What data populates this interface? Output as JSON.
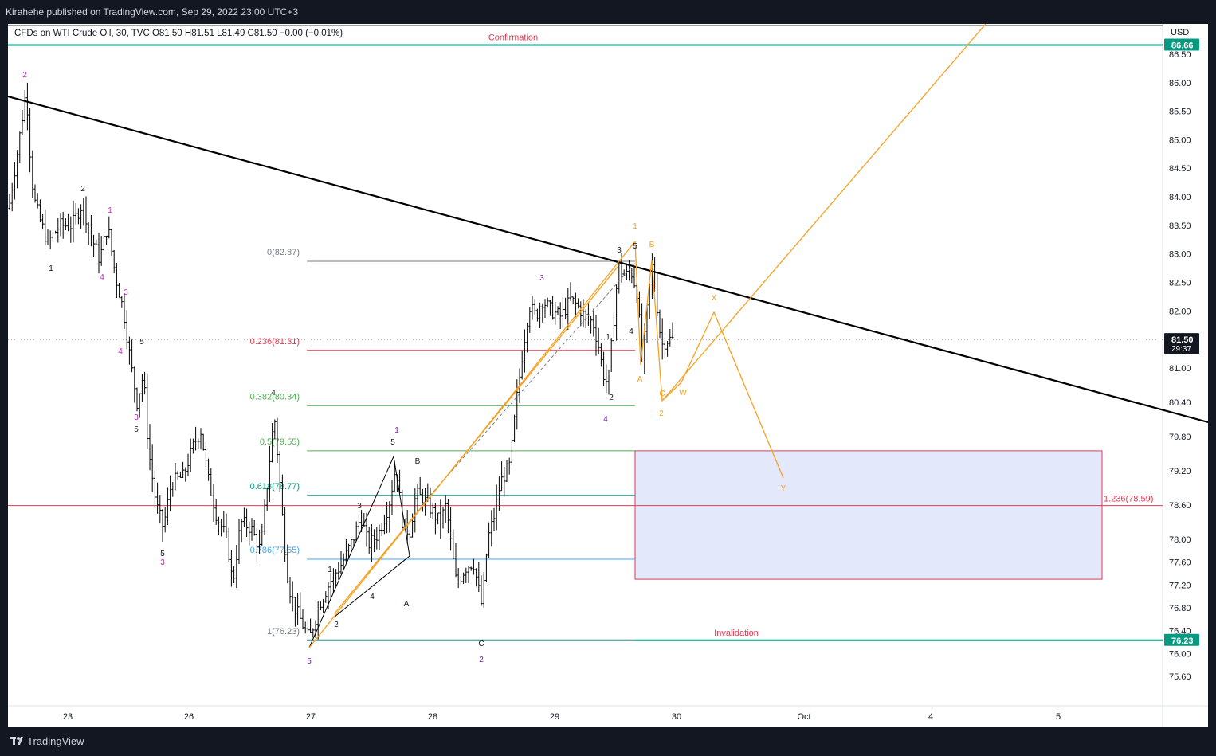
{
  "publisher_line": "Kirahehe published on TradingView.com, Sep 29, 2022 23:00 UTC+3",
  "brand": "TradingView",
  "symbol_line": {
    "symbol": "CFDs on WTI Crude Oil, 30, TVC",
    "open": "O81.50",
    "high": "H81.51",
    "low": "L81.49",
    "close": "C81.50",
    "change": "−0.00 (−0.01%)"
  },
  "currency": "USD",
  "colors": {
    "background": "#131722",
    "chart": "#ffffff",
    "candles": "#000000",
    "teal": "#089981",
    "orange": "#f7a01f",
    "magenta": "#cc22cc",
    "purple": "#7b1fa2",
    "red": "#e53950",
    "zone_fill": "#e4e8fb"
  },
  "chart_data": {
    "type": "candlestick",
    "title": "",
    "xlabel": "",
    "ylabel": "",
    "price_scale": "right",
    "ylim": [
      75.2,
      87.2
    ],
    "x_tick_labels": [
      "23",
      "26",
      "27",
      "28",
      "29",
      "30",
      "Oct",
      "4",
      "5"
    ],
    "y_tick_labels": [
      "86.50",
      "86.00",
      "85.50",
      "85.00",
      "84.50",
      "84.00",
      "83.50",
      "83.00",
      "82.50",
      "82.00",
      "81.00",
      "80.40",
      "79.80",
      "79.20",
      "78.60",
      "78.00",
      "77.60",
      "77.20",
      "76.80",
      "76.40",
      "76.00",
      "75.60"
    ],
    "price_badges": [
      {
        "label": "86.66",
        "value": 86.66,
        "color": "#089981"
      },
      {
        "label": "81.50",
        "value": 81.5,
        "sub": "29:37",
        "color": "#131722"
      },
      {
        "label": "76.23",
        "value": 76.23,
        "color": "#089981"
      }
    ],
    "horizontal_levels": [
      {
        "label": "Confirmation",
        "value": 86.66,
        "color": "#089981"
      },
      {
        "label": "Invalidation",
        "value": 76.23,
        "color": "#089981"
      },
      {
        "label": "1.236(78.59)",
        "value": 78.59,
        "color": "#e53950"
      }
    ],
    "fibonacci": [
      {
        "label": "0(82.87)",
        "value": 82.87,
        "color": "#787b86"
      },
      {
        "label": "0.236(81.31)",
        "value": 81.31,
        "color": "#e53950"
      },
      {
        "label": "0.382(80.34)",
        "value": 80.34,
        "color": "#4caf50"
      },
      {
        "label": "0.5(79.55)",
        "value": 79.55,
        "color": "#4caf50"
      },
      {
        "label": "0.618(78.77)",
        "value": 78.77,
        "color": "#089981"
      },
      {
        "label": "0.786(77.65)",
        "value": 77.65,
        "color": "#42a5f5"
      },
      {
        "label": "1(76.23)",
        "value": 76.23,
        "color": "#787b86"
      }
    ],
    "target_zone": {
      "from_price": 77.3,
      "to_price": 79.55,
      "color": "#e4e8fb"
    },
    "wave_labels": [
      "2",
      "2",
      "1",
      "1",
      "4",
      "3",
      "4",
      "5",
      "3",
      "5",
      "3",
      "4",
      "1",
      "2",
      "3",
      "4",
      "5",
      "1",
      "5",
      "B",
      "A",
      "2",
      "C",
      "3",
      "1",
      "4",
      "2",
      "4",
      "3",
      "5",
      "1",
      "B",
      "A",
      "C",
      "2",
      "W",
      "X",
      "Y"
    ],
    "annotations": [
      "Confirmation",
      "Invalidation"
    ]
  }
}
